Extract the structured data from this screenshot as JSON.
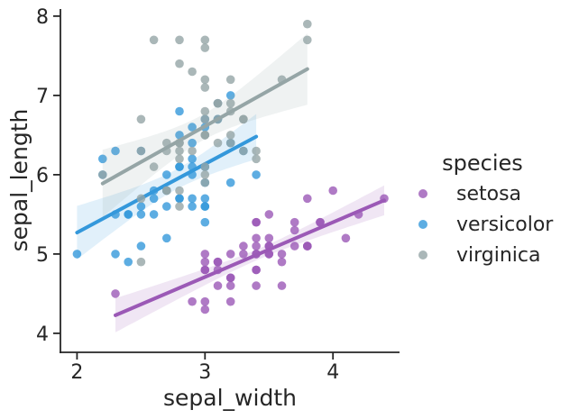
{
  "chart_data": {
    "type": "scatter",
    "title": "",
    "xlabel": "sepal_width",
    "ylabel": "sepal_length",
    "legend_title": "species",
    "x_ticks": [
      2,
      3,
      4
    ],
    "y_ticks": [
      4,
      5,
      6,
      7,
      8
    ],
    "xlim": [
      1.87,
      4.52
    ],
    "ylim": [
      3.76,
      8.09
    ],
    "grid": false,
    "legend_position": "right-outside",
    "axis_color": "#262626",
    "regression": {
      "show_line": true,
      "show_confidence_band": true,
      "band_opacity": 0.15,
      "line_width": 4
    },
    "marker": {
      "radius": 4.8,
      "opacity": 0.8
    },
    "series": [
      {
        "name": "setosa",
        "color": "#9b59b6",
        "x": [
          3.5,
          3.0,
          3.2,
          3.1,
          3.6,
          3.9,
          3.4,
          3.4,
          2.9,
          3.1,
          3.7,
          3.4,
          3.0,
          3.0,
          4.0,
          4.4,
          3.9,
          3.5,
          3.8,
          3.8,
          3.4,
          3.7,
          3.6,
          3.3,
          3.4,
          3.0,
          3.4,
          3.5,
          3.4,
          3.2,
          3.1,
          3.4,
          4.1,
          4.2,
          3.1,
          3.2,
          3.5,
          3.6,
          3.0,
          3.4,
          3.5,
          2.3,
          3.2,
          3.5,
          3.8,
          3.0,
          3.8,
          3.2,
          3.7,
          3.3
        ],
        "y": [
          5.1,
          4.9,
          4.7,
          4.6,
          5.0,
          5.4,
          4.6,
          5.0,
          4.4,
          4.9,
          5.4,
          4.8,
          4.8,
          4.3,
          5.8,
          5.7,
          5.4,
          5.1,
          5.7,
          5.1,
          5.4,
          5.1,
          4.6,
          5.1,
          4.8,
          5.0,
          5.0,
          5.2,
          5.2,
          4.7,
          4.8,
          5.4,
          5.2,
          5.5,
          4.9,
          5.0,
          5.5,
          4.9,
          4.4,
          5.1,
          5.0,
          4.5,
          4.4,
          5.0,
          5.1,
          4.8,
          5.1,
          4.6,
          5.3,
          5.0
        ]
      },
      {
        "name": "versicolor",
        "color": "#3498db",
        "x": [
          3.2,
          3.2,
          3.1,
          2.3,
          2.8,
          2.8,
          3.3,
          2.4,
          2.9,
          2.7,
          2.0,
          3.0,
          2.2,
          2.9,
          2.9,
          3.1,
          3.0,
          2.7,
          2.2,
          2.5,
          3.2,
          2.8,
          2.5,
          2.8,
          2.9,
          3.0,
          2.8,
          3.0,
          2.9,
          2.6,
          2.4,
          2.4,
          2.7,
          2.7,
          3.0,
          3.4,
          3.1,
          2.3,
          3.0,
          2.5,
          2.6,
          3.0,
          2.6,
          2.3,
          2.7,
          3.0,
          2.9,
          2.9,
          2.5,
          2.8
        ],
        "y": [
          7.0,
          6.4,
          6.9,
          5.5,
          6.5,
          5.7,
          6.3,
          4.9,
          6.6,
          5.2,
          5.0,
          5.9,
          6.0,
          6.1,
          5.6,
          6.7,
          5.6,
          5.8,
          6.2,
          5.6,
          5.9,
          6.1,
          6.3,
          6.1,
          6.4,
          6.6,
          6.8,
          6.7,
          6.0,
          5.7,
          5.5,
          5.5,
          5.8,
          6.0,
          5.4,
          6.0,
          6.7,
          6.3,
          5.6,
          5.5,
          5.5,
          6.1,
          5.8,
          5.0,
          5.6,
          5.7,
          5.7,
          6.2,
          5.1,
          5.7
        ]
      },
      {
        "name": "virginica",
        "color": "#95a5a6",
        "x": [
          3.3,
          2.7,
          3.0,
          2.9,
          3.0,
          3.0,
          2.5,
          2.9,
          2.5,
          3.6,
          3.2,
          2.7,
          3.0,
          2.5,
          2.8,
          3.2,
          3.0,
          3.8,
          2.6,
          2.2,
          3.2,
          2.8,
          2.8,
          2.7,
          3.3,
          3.2,
          2.8,
          3.0,
          2.8,
          3.0,
          2.8,
          3.8,
          2.8,
          2.8,
          2.6,
          3.0,
          3.4,
          3.1,
          3.0,
          3.1,
          3.1,
          3.1,
          2.7,
          3.2,
          3.3,
          3.0,
          2.5,
          3.0,
          3.4,
          3.0
        ],
        "y": [
          6.3,
          5.8,
          7.1,
          6.3,
          6.5,
          7.6,
          4.9,
          7.3,
          6.7,
          7.2,
          6.5,
          6.4,
          6.8,
          5.7,
          5.8,
          6.4,
          6.5,
          7.7,
          7.7,
          6.0,
          6.9,
          5.6,
          7.7,
          6.3,
          6.7,
          7.2,
          6.2,
          6.1,
          6.4,
          7.2,
          7.4,
          7.9,
          6.4,
          6.3,
          6.1,
          7.7,
          6.3,
          6.4,
          6.0,
          6.9,
          6.7,
          6.9,
          5.8,
          6.8,
          6.7,
          6.7,
          6.3,
          6.5,
          6.2,
          5.9
        ]
      }
    ]
  }
}
